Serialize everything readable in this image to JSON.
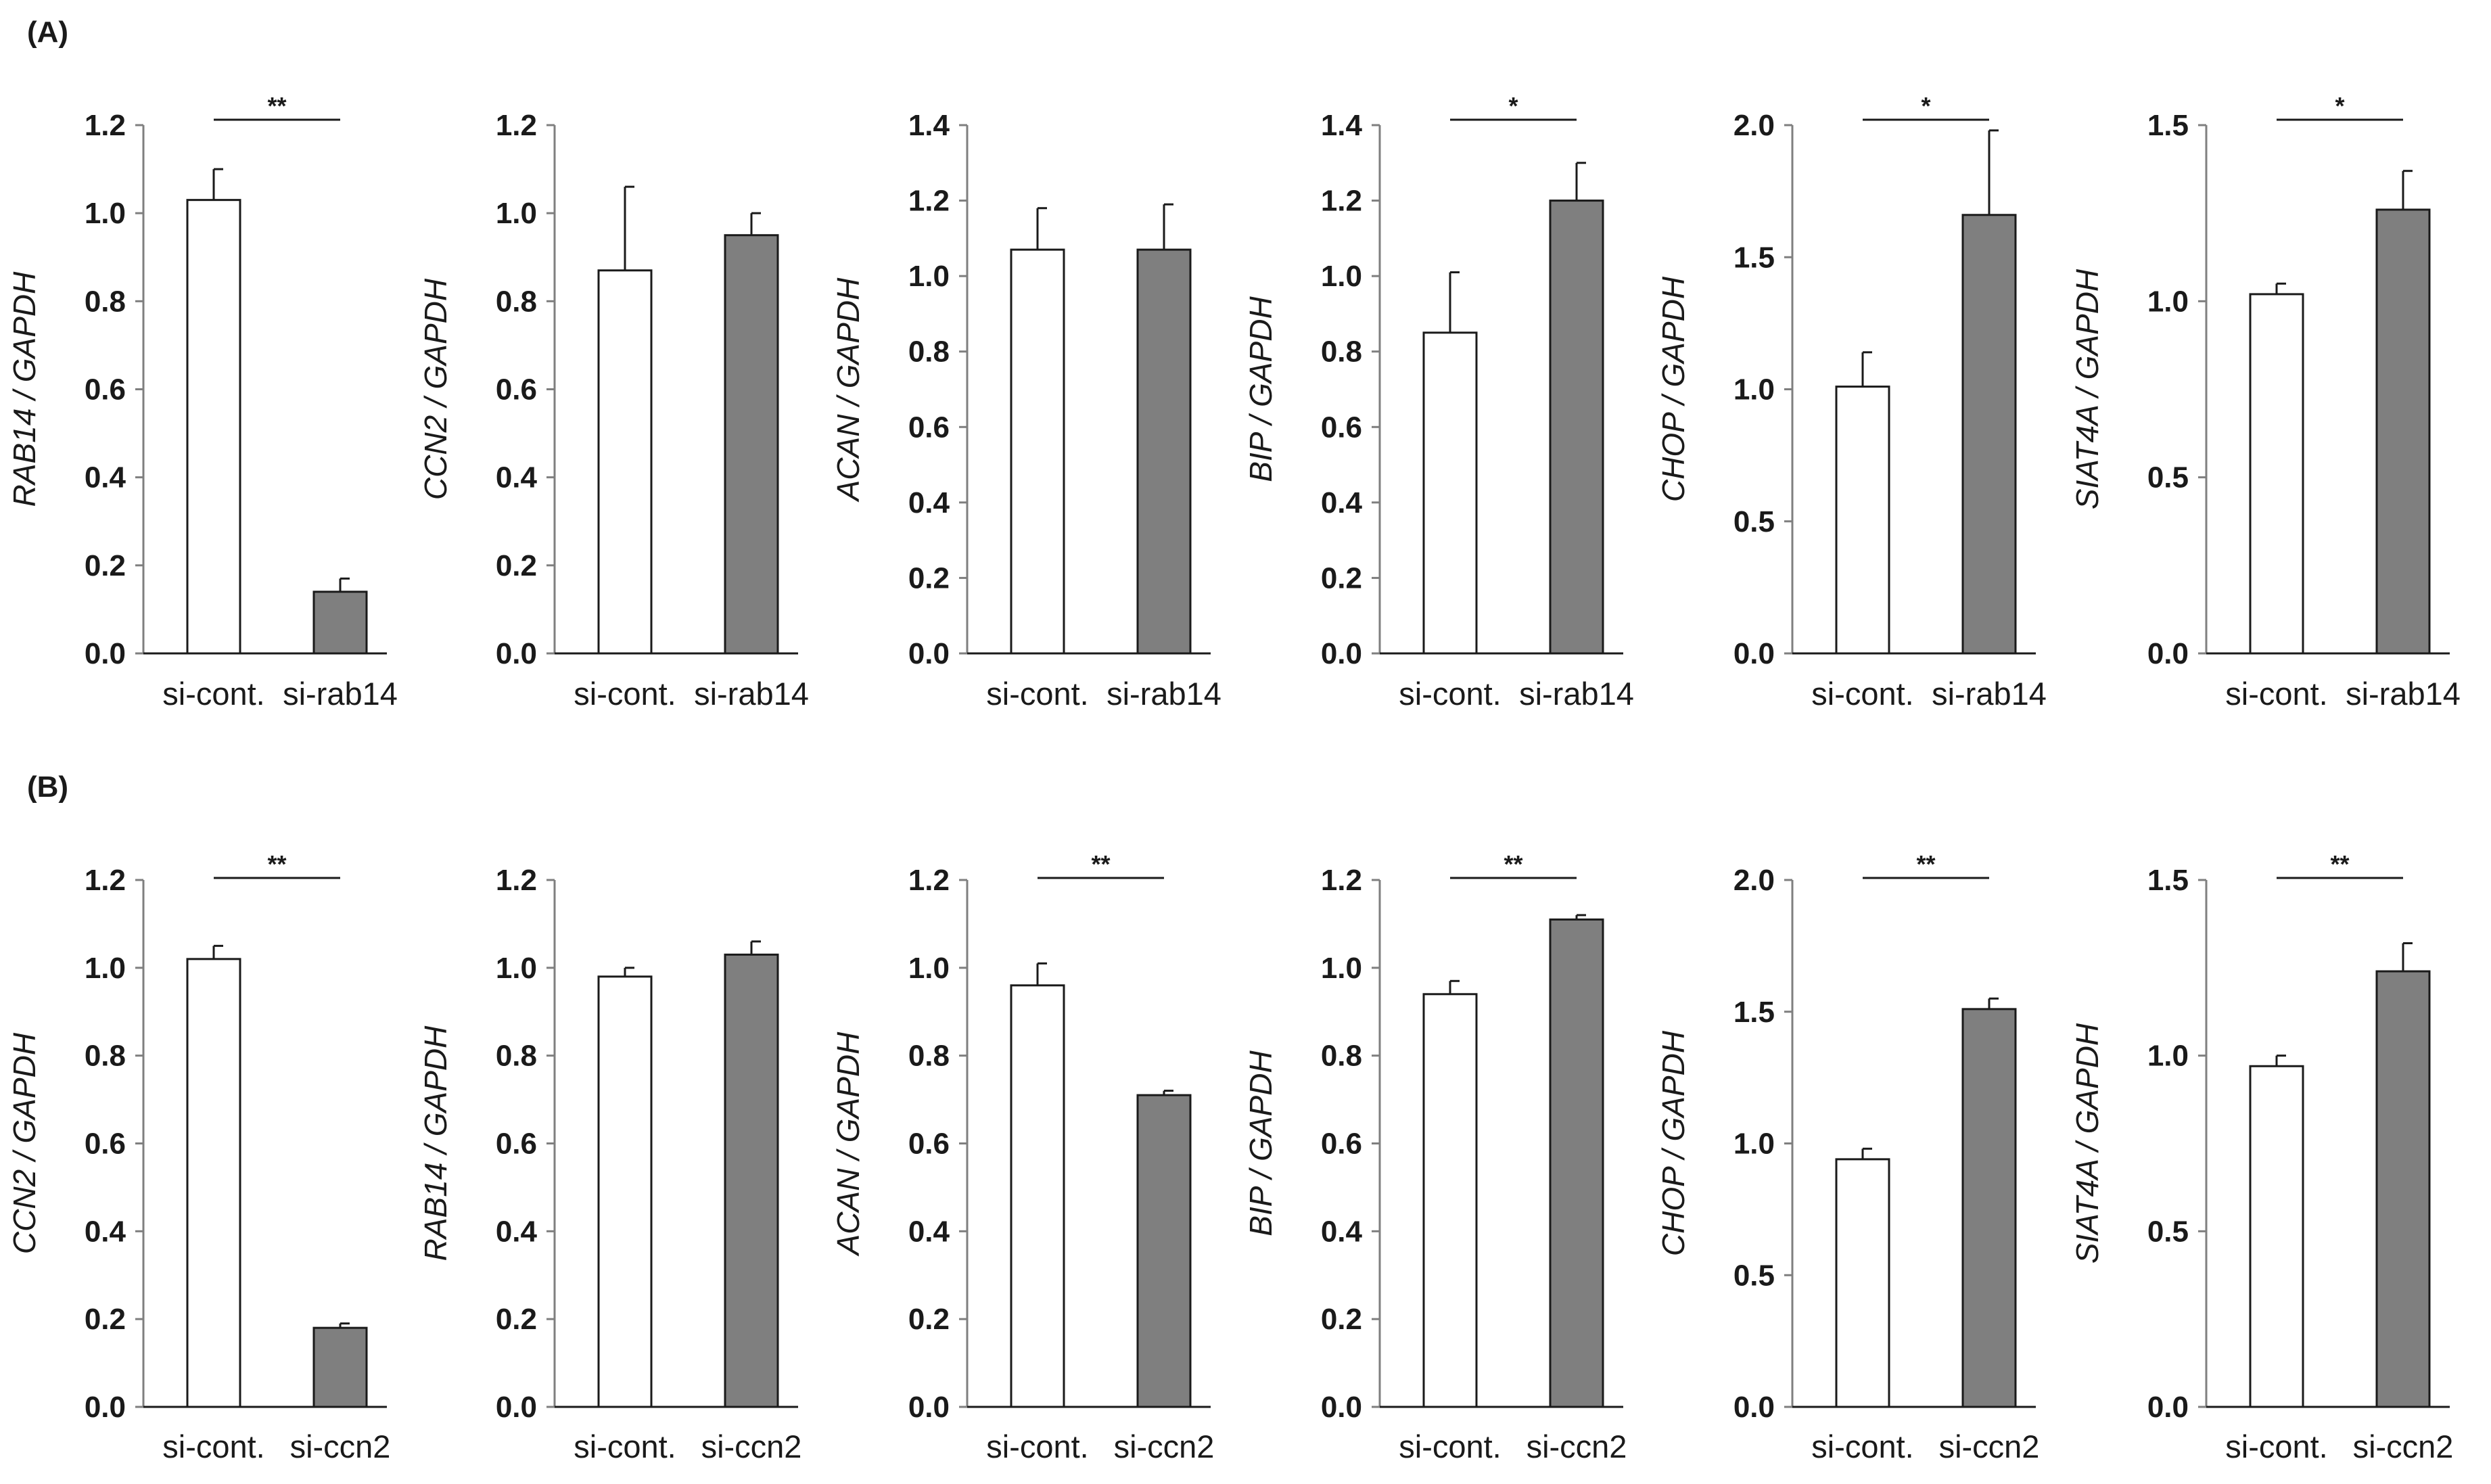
{
  "figure": {
    "panels": [
      {
        "label": "(A)"
      },
      {
        "label": "(B)"
      }
    ]
  },
  "chart_data": [
    {
      "type": "bar",
      "panel": "(A)",
      "title": "",
      "xlabel": "",
      "ylabel": "RAB14 / GAPDH",
      "categories": [
        "si-cont.",
        "si-rab14"
      ],
      "values": [
        1.03,
        0.14
      ],
      "errors": [
        0.07,
        0.03
      ],
      "ylim": [
        0,
        1.2
      ],
      "yticks": [
        "0.0",
        "0.2",
        "0.4",
        "0.6",
        "0.8",
        "1.0",
        "1.2"
      ],
      "significance": "**",
      "colors": [
        "#ffffff",
        "#7f7f7f"
      ]
    },
    {
      "type": "bar",
      "panel": "(A)",
      "title": "",
      "xlabel": "",
      "ylabel": "CCN2 / GAPDH",
      "categories": [
        "si-cont.",
        "si-rab14"
      ],
      "values": [
        0.87,
        0.95
      ],
      "errors": [
        0.19,
        0.05
      ],
      "ylim": [
        0,
        1.2
      ],
      "yticks": [
        "0.0",
        "0.2",
        "0.4",
        "0.6",
        "0.8",
        "1.0",
        "1.2"
      ],
      "significance": "",
      "colors": [
        "#ffffff",
        "#7f7f7f"
      ]
    },
    {
      "type": "bar",
      "panel": "(A)",
      "title": "",
      "xlabel": "",
      "ylabel": "ACAN / GAPDH",
      "categories": [
        "si-cont.",
        "si-rab14"
      ],
      "values": [
        1.07,
        1.07
      ],
      "errors": [
        0.11,
        0.12
      ],
      "ylim": [
        0,
        1.4
      ],
      "yticks": [
        "0.0",
        "0.2",
        "0.4",
        "0.6",
        "0.8",
        "1.0",
        "1.2",
        "1.4"
      ],
      "significance": "",
      "colors": [
        "#ffffff",
        "#7f7f7f"
      ]
    },
    {
      "type": "bar",
      "panel": "(A)",
      "title": "",
      "xlabel": "",
      "ylabel": "BIP / GAPDH",
      "categories": [
        "si-cont.",
        "si-rab14"
      ],
      "values": [
        0.85,
        1.2
      ],
      "errors": [
        0.16,
        0.1
      ],
      "ylim": [
        0,
        1.4
      ],
      "yticks": [
        "0.0",
        "0.2",
        "0.4",
        "0.6",
        "0.8",
        "1.0",
        "1.2",
        "1.4"
      ],
      "significance": "*",
      "colors": [
        "#ffffff",
        "#7f7f7f"
      ]
    },
    {
      "type": "bar",
      "panel": "(A)",
      "title": "",
      "xlabel": "",
      "ylabel": "CHOP / GAPDH",
      "categories": [
        "si-cont.",
        "si-rab14"
      ],
      "values": [
        1.01,
        1.66
      ],
      "errors": [
        0.13,
        0.32
      ],
      "ylim": [
        0,
        2.0
      ],
      "yticks": [
        "0.0",
        "0.5",
        "1.0",
        "1.5",
        "2.0"
      ],
      "significance": "*",
      "colors": [
        "#ffffff",
        "#7f7f7f"
      ]
    },
    {
      "type": "bar",
      "panel": "(A)",
      "title": "",
      "xlabel": "",
      "ylabel": "SIAT4A / GAPDH",
      "categories": [
        "si-cont.",
        "si-rab14"
      ],
      "values": [
        1.02,
        1.26
      ],
      "errors": [
        0.03,
        0.11
      ],
      "ylim": [
        0,
        1.5
      ],
      "yticks": [
        "0.0",
        "0.5",
        "1.0",
        "1.5"
      ],
      "significance": "*",
      "colors": [
        "#ffffff",
        "#7f7f7f"
      ]
    },
    {
      "type": "bar",
      "panel": "(B)",
      "title": "",
      "xlabel": "",
      "ylabel": "CCN2 / GAPDH",
      "categories": [
        "si-cont.",
        "si-ccn2"
      ],
      "values": [
        1.02,
        0.18
      ],
      "errors": [
        0.03,
        0.01
      ],
      "ylim": [
        0,
        1.2
      ],
      "yticks": [
        "0.0",
        "0.2",
        "0.4",
        "0.6",
        "0.8",
        "1.0",
        "1.2"
      ],
      "significance": "**",
      "colors": [
        "#ffffff",
        "#7f7f7f"
      ]
    },
    {
      "type": "bar",
      "panel": "(B)",
      "title": "",
      "xlabel": "",
      "ylabel": "RAB14 / GAPDH",
      "categories": [
        "si-cont.",
        "si-ccn2"
      ],
      "values": [
        0.98,
        1.03
      ],
      "errors": [
        0.02,
        0.03
      ],
      "ylim": [
        0,
        1.2
      ],
      "yticks": [
        "0.0",
        "0.2",
        "0.4",
        "0.6",
        "0.8",
        "1.0",
        "1.2"
      ],
      "significance": "",
      "colors": [
        "#ffffff",
        "#7f7f7f"
      ]
    },
    {
      "type": "bar",
      "panel": "(B)",
      "title": "",
      "xlabel": "",
      "ylabel": "ACAN / GAPDH",
      "categories": [
        "si-cont.",
        "si-ccn2"
      ],
      "values": [
        0.96,
        0.71
      ],
      "errors": [
        0.05,
        0.01
      ],
      "ylim": [
        0,
        1.2
      ],
      "yticks": [
        "0.0",
        "0.2",
        "0.4",
        "0.6",
        "0.8",
        "1.0",
        "1.2"
      ],
      "significance": "**",
      "colors": [
        "#ffffff",
        "#7f7f7f"
      ]
    },
    {
      "type": "bar",
      "panel": "(B)",
      "title": "",
      "xlabel": "",
      "ylabel": "BIP / GAPDH",
      "categories": [
        "si-cont.",
        "si-ccn2"
      ],
      "values": [
        0.94,
        1.11
      ],
      "errors": [
        0.03,
        0.01
      ],
      "ylim": [
        0,
        1.2
      ],
      "yticks": [
        "0.0",
        "0.2",
        "0.4",
        "0.6",
        "0.8",
        "1.0",
        "1.2"
      ],
      "significance": "**",
      "colors": [
        "#ffffff",
        "#7f7f7f"
      ]
    },
    {
      "type": "bar",
      "panel": "(B)",
      "title": "",
      "xlabel": "",
      "ylabel": "CHOP / GAPDH",
      "categories": [
        "si-cont.",
        "si-ccn2"
      ],
      "values": [
        0.94,
        1.51
      ],
      "errors": [
        0.04,
        0.04
      ],
      "ylim": [
        0,
        2.0
      ],
      "yticks": [
        "0.0",
        "0.5",
        "1.0",
        "1.5",
        "2.0"
      ],
      "significance": "**",
      "colors": [
        "#ffffff",
        "#7f7f7f"
      ]
    },
    {
      "type": "bar",
      "panel": "(B)",
      "title": "",
      "xlabel": "",
      "ylabel": "SIAT4A / GAPDH",
      "categories": [
        "si-cont.",
        "si-ccn2"
      ],
      "values": [
        0.97,
        1.24
      ],
      "errors": [
        0.03,
        0.08
      ],
      "ylim": [
        0,
        1.5
      ],
      "yticks": [
        "0.0",
        "0.5",
        "1.0",
        "1.5"
      ],
      "significance": "**",
      "colors": [
        "#ffffff",
        "#7f7f7f"
      ]
    }
  ]
}
